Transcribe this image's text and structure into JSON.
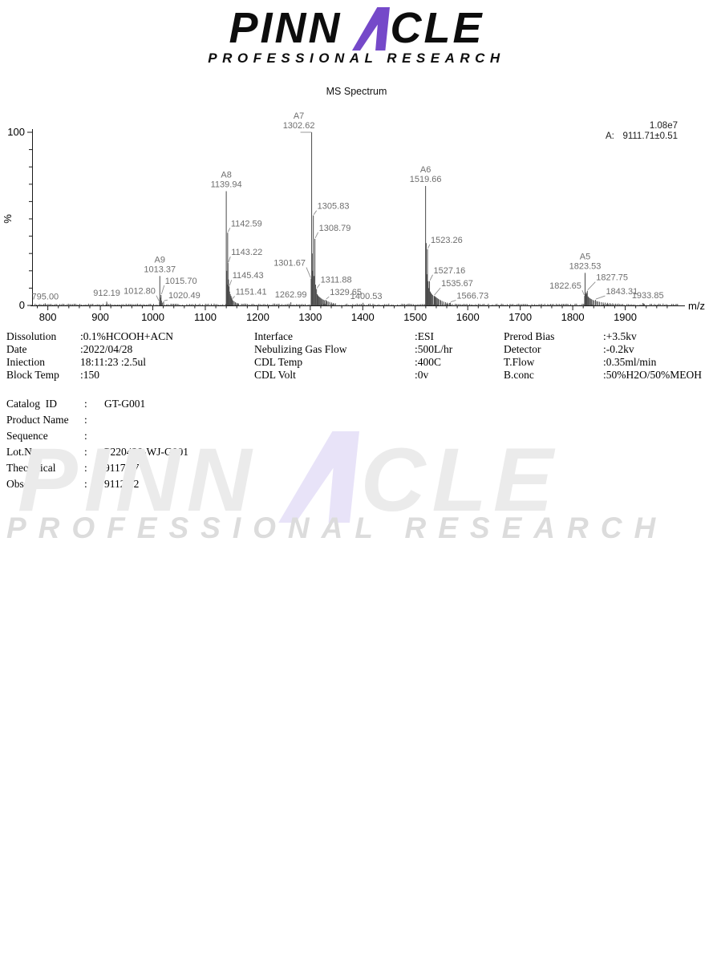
{
  "logo": {
    "part1": "PINN",
    "part2": "CLE",
    "subtitle": "PROFESSIONAL RESEARCH",
    "accent_color": "#7549c9",
    "text_color": "#0d0d0d"
  },
  "title": "MS Spectrum",
  "chart_data": {
    "type": "bar",
    "variant": "mass_spectrum_stick_plot",
    "title": "MS Spectrum",
    "xlabel": "m/z",
    "ylabel": "%",
    "xlim": [
      770,
      2000
    ],
    "ylim": [
      0,
      100
    ],
    "xticks": [
      800,
      900,
      1000,
      1100,
      1200,
      1300,
      1400,
      1500,
      1600,
      1700,
      1800,
      1900
    ],
    "ytick_labels": [
      "0",
      "100"
    ],
    "grid": false,
    "annotation_intensity": "1.08e7",
    "annotation_series_label": "A:",
    "annotation_series_value": "9111.71±0.51",
    "peaks": [
      {
        "mz": 795.0,
        "pct": 1.2,
        "label": "795.00",
        "place": "above",
        "dx": 0,
        "dy": 0
      },
      {
        "mz": 912.19,
        "pct": 2.2,
        "label": "912.19",
        "place": "above",
        "dx": 0,
        "dy": -2
      },
      {
        "mz": 1012.8,
        "pct": 2.0,
        "label": "1012.80",
        "place": "left",
        "dx": -5,
        "dy": -10
      },
      {
        "mz": 1013.37,
        "pct": 17.0,
        "label": "1013.37",
        "name": "A9",
        "place": "above",
        "dx": 0,
        "dy": 0
      },
      {
        "mz": 1015.7,
        "pct": 6.0,
        "label": "1015.70",
        "place": "right",
        "dx": 5,
        "dy": -14
      },
      {
        "mz": 1020.49,
        "pct": 2.2,
        "label": "1020.49",
        "place": "right",
        "dx": 6,
        "dy": -4
      },
      {
        "mz": 1139.94,
        "pct": 66.0,
        "label": "1139.94",
        "name": "A8",
        "place": "above",
        "dx": 0,
        "dy": 0
      },
      {
        "mz": 1142.59,
        "pct": 42.0,
        "label": "1142.59",
        "place": "right",
        "dx": 4,
        "dy": -8
      },
      {
        "mz": 1143.22,
        "pct": 24.5,
        "label": "1143.22",
        "place": "right",
        "dx": 4,
        "dy": -10
      },
      {
        "mz": 1145.43,
        "pct": 11.0,
        "label": "1145.43",
        "place": "right",
        "dx": 4,
        "dy": -10
      },
      {
        "mz": 1151.41,
        "pct": 3.5,
        "label": "1151.41",
        "place": "right",
        "dx": 4,
        "dy": -6
      },
      {
        "mz": 1262.99,
        "pct": 1.8,
        "label": "1262.99",
        "place": "above",
        "dx": 0,
        "dy": -1
      },
      {
        "mz": 1301.67,
        "pct": 15.5,
        "label": "1301.67",
        "place": "left",
        "dx": -7,
        "dy": -16
      },
      {
        "mz": 1302.62,
        "pct": 100.0,
        "label": "1302.62",
        "name": "A7",
        "place": "above",
        "dx": -16,
        "dy": 0,
        "topserif": true
      },
      {
        "mz": 1305.83,
        "pct": 52.0,
        "label": "1305.83",
        "place": "right",
        "dx": 5,
        "dy": -8
      },
      {
        "mz": 1308.79,
        "pct": 38.5,
        "label": "1308.79",
        "place": "right",
        "dx": 5,
        "dy": -10
      },
      {
        "mz": 1311.88,
        "pct": 9.5,
        "label": "1311.88",
        "place": "right",
        "dx": 5,
        "dy": -8
      },
      {
        "mz": 1329.65,
        "pct": 3.2,
        "label": "1329.65",
        "place": "right",
        "dx": 5,
        "dy": -6
      },
      {
        "mz": 1400.53,
        "pct": 1.5,
        "label": "1400.53",
        "place": "above",
        "dx": 4,
        "dy": 0
      },
      {
        "mz": 1519.66,
        "pct": 69.0,
        "label": "1519.66",
        "name": "A6",
        "place": "above",
        "dx": 0,
        "dy": 0
      },
      {
        "mz": 1523.26,
        "pct": 32.5,
        "label": "1523.26",
        "place": "right",
        "dx": 4,
        "dy": -8
      },
      {
        "mz": 1527.16,
        "pct": 14.0,
        "label": "1527.16",
        "place": "right",
        "dx": 5,
        "dy": -10
      },
      {
        "mz": 1535.67,
        "pct": 5.5,
        "label": "1535.67",
        "place": "right",
        "dx": 9,
        "dy": -12
      },
      {
        "mz": 1566.73,
        "pct": 1.6,
        "label": "1566.73",
        "place": "right",
        "dx": 8,
        "dy": -5
      },
      {
        "mz": 1822.65,
        "pct": 5.5,
        "label": "1822.65",
        "place": "left",
        "dx": -4,
        "dy": -9
      },
      {
        "mz": 1823.53,
        "pct": 18.8,
        "label": "1823.53",
        "name": "A5",
        "place": "above",
        "dx": 0,
        "dy": 0
      },
      {
        "mz": 1827.75,
        "pct": 8.5,
        "label": "1827.75",
        "place": "right",
        "dx": 11,
        "dy": -13
      },
      {
        "mz": 1843.31,
        "pct": 3.2,
        "label": "1843.31",
        "place": "right",
        "dx": 13,
        "dy": -7
      },
      {
        "mz": 1933.85,
        "pct": 1.4,
        "label": "1933.85",
        "place": "above",
        "dx": 6,
        "dy": -1
      }
    ],
    "minor_peaks": [
      [
        913.1,
        1.1
      ],
      [
        1014.3,
        4.5
      ],
      [
        1016.6,
        2.8
      ],
      [
        1018.0,
        1.6
      ],
      [
        1140.8,
        20
      ],
      [
        1141.6,
        12
      ],
      [
        1144.2,
        15
      ],
      [
        1146.3,
        8
      ],
      [
        1147.6,
        6.5
      ],
      [
        1149.0,
        5.5
      ],
      [
        1150.2,
        4.5
      ],
      [
        1153.0,
        2.8
      ],
      [
        1155.1,
        2.3
      ],
      [
        1157.4,
        1.8
      ],
      [
        1159.8,
        1.5
      ],
      [
        1162.5,
        1.3
      ],
      [
        1303.6,
        30
      ],
      [
        1304.4,
        20
      ],
      [
        1307.2,
        17
      ],
      [
        1310.1,
        12
      ],
      [
        1313.2,
        6.5
      ],
      [
        1314.8,
        5.8
      ],
      [
        1316.4,
        5.2
      ],
      [
        1318.0,
        4.8
      ],
      [
        1319.6,
        4.4
      ],
      [
        1321.3,
        4.0
      ],
      [
        1323.0,
        3.6
      ],
      [
        1325.0,
        3.3
      ],
      [
        1327.2,
        3.0
      ],
      [
        1331.5,
        2.6
      ],
      [
        1334.0,
        2.3
      ],
      [
        1337.0,
        2.0
      ],
      [
        1340.5,
        1.7
      ],
      [
        1344.0,
        1.4
      ],
      [
        1348.0,
        1.2
      ],
      [
        1520.9,
        36
      ],
      [
        1522.0,
        18
      ],
      [
        1524.6,
        14
      ],
      [
        1525.8,
        10
      ],
      [
        1528.6,
        8
      ],
      [
        1530.0,
        7.2
      ],
      [
        1531.5,
        6.6
      ],
      [
        1533.0,
        6.0
      ],
      [
        1537.0,
        5.4
      ],
      [
        1538.6,
        5.0
      ],
      [
        1540.2,
        4.6
      ],
      [
        1542.0,
        4.2
      ],
      [
        1544.0,
        3.8
      ],
      [
        1546.2,
        3.4
      ],
      [
        1548.5,
        3.0
      ],
      [
        1551.0,
        2.6
      ],
      [
        1554.0,
        2.2
      ],
      [
        1557.5,
        1.9
      ],
      [
        1561.0,
        1.6
      ],
      [
        1565.0,
        1.4
      ],
      [
        1824.6,
        6.5
      ],
      [
        1825.7,
        7.5
      ],
      [
        1826.6,
        6.8
      ],
      [
        1829.2,
        5.2
      ],
      [
        1830.6,
        4.7
      ],
      [
        1832.2,
        4.2
      ],
      [
        1834.0,
        3.9
      ],
      [
        1836.0,
        3.6
      ],
      [
        1838.2,
        3.2
      ],
      [
        1840.5,
        2.9
      ],
      [
        1845.5,
        2.5
      ],
      [
        1848.0,
        2.3
      ],
      [
        1851.0,
        2.1
      ],
      [
        1854.5,
        1.9
      ],
      [
        1858.0,
        1.7
      ],
      [
        1862.0,
        1.6
      ],
      [
        1866.5,
        1.5
      ],
      [
        1871.0,
        1.3
      ],
      [
        1876.0,
        1.2
      ],
      [
        1935.5,
        1.0
      ]
    ]
  },
  "parameters": {
    "rows": [
      [
        {
          "label": "Dissolution",
          "value": ":0.1%HCOOH+ACN"
        },
        {
          "label": "Interface",
          "value": ":ESI"
        },
        {
          "label": "Prerod Bias",
          "value": ":+3.5kv"
        }
      ],
      [
        {
          "label": "Date",
          "value": ":2022/04/28"
        },
        {
          "label": "Nebulizing Gas Flow",
          "value": ":500L/hr"
        },
        {
          "label": "Detector",
          "value": ":-0.2kv"
        }
      ],
      [
        {
          "label": "Iniection",
          "value": "18:11:23 :2.5ul"
        },
        {
          "label": "CDL Temp",
          "value": ":400C"
        },
        {
          "label": "T.Flow",
          "value": ":0.35ml/min"
        }
      ],
      [
        {
          "label": "Block Temp",
          "value": ":150"
        },
        {
          "label": "CDL Volt",
          "value": ":0v"
        },
        {
          "label": "B.conc",
          "value": ":50%H2O/50%MEOH"
        }
      ]
    ]
  },
  "sample_info": {
    "rows": [
      {
        "label": "Catalog  ID",
        "colon": ":",
        "value": "GT-G001"
      },
      {
        "label": "Product Name",
        "colon": ":",
        "value": ""
      },
      {
        "label": "Sequence",
        "colon": ":",
        "value": ""
      },
      {
        "label": "Lot.No",
        "colon": ":",
        "value": "P220428-WJ-G001"
      },
      {
        "label": "Theoretical",
        "colon": ":",
        "value": "9117.17"
      },
      {
        "label": "Observed",
        "colon": ":",
        "value": "9112.22"
      }
    ]
  },
  "watermark": {
    "part1": "PINN",
    "part2": "CLE",
    "subtitle": "PROFESSIONAL RESEARCH",
    "accent_color": "#e8e3f8",
    "text_color": "#ebebeb"
  }
}
